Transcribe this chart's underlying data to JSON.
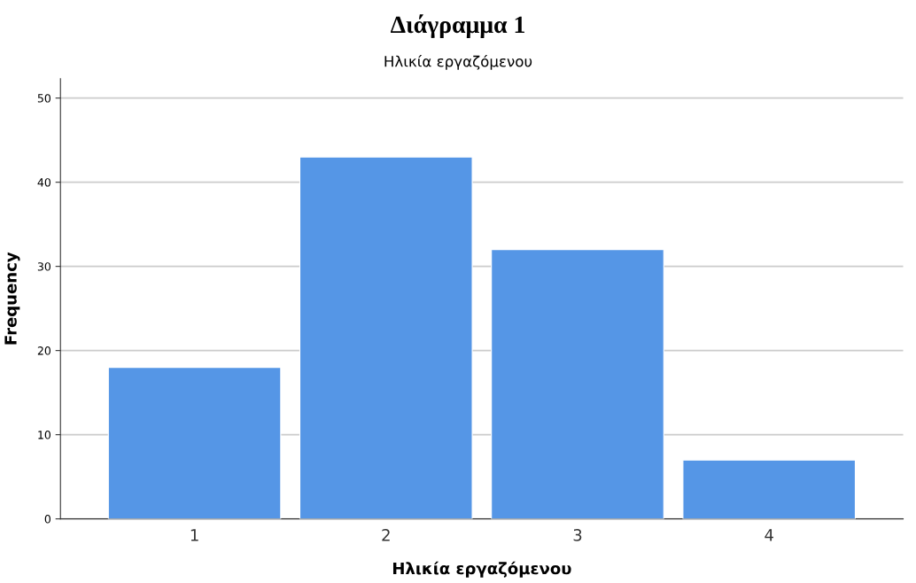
{
  "chart_data": {
    "type": "bar",
    "title": "Διάγραμμα 1",
    "subtitle": "Ηλικία εργαζόμενου",
    "xlabel": "Ηλικία εργαζόμενου",
    "ylabel": "Frequency",
    "categories": [
      "1",
      "2",
      "3",
      "4"
    ],
    "values": [
      18,
      43,
      32,
      7
    ],
    "color": "#5596e6",
    "ylim": [
      0,
      52.3
    ],
    "yticks": [
      0,
      10,
      20,
      30,
      40,
      50
    ],
    "grid": "y"
  }
}
